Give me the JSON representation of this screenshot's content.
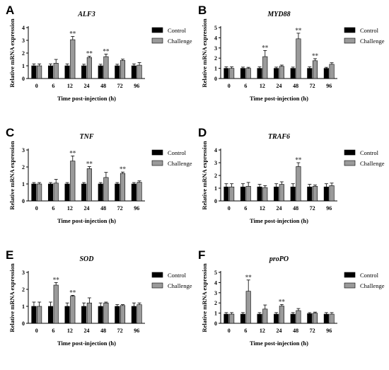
{
  "legend": {
    "control": "Control",
    "challenge": "Challenge"
  },
  "colors": {
    "control": "#000000",
    "challenge": "#9a9a9a",
    "significance": "#555555"
  },
  "chart_data": [
    {
      "panel": "A",
      "type": "bar",
      "title": "ALF3",
      "ylabel": "Relative mRNA expression",
      "xlabel": "Time post-injection (h)",
      "categories": [
        "0",
        "6",
        "12",
        "24",
        "48",
        "72",
        "96"
      ],
      "ylim": [
        0,
        4
      ],
      "yticks": [
        0,
        1,
        2,
        3,
        4
      ],
      "series": [
        {
          "name": "Control",
          "values": [
            1.0,
            1.0,
            1.0,
            1.0,
            1.0,
            1.0,
            1.0
          ],
          "errors": [
            0.15,
            0.15,
            0.15,
            0.12,
            0.12,
            0.12,
            0.15
          ]
        },
        {
          "name": "Challenge",
          "values": [
            1.0,
            1.2,
            3.05,
            1.65,
            1.72,
            1.42,
            1.05
          ],
          "errors": [
            0.15,
            0.3,
            0.25,
            0.1,
            0.2,
            0.1,
            0.2
          ]
        }
      ],
      "significance": [
        "",
        "",
        "**",
        "**",
        "**",
        "",
        ""
      ]
    },
    {
      "panel": "B",
      "type": "bar",
      "title": "MYD88",
      "ylabel": "Relative mRNA expression",
      "xlabel": "Time post-injection (h)",
      "categories": [
        "0",
        "6",
        "12",
        "24",
        "48",
        "72",
        "96"
      ],
      "ylim": [
        0,
        5
      ],
      "yticks": [
        0,
        1,
        2,
        3,
        4,
        5
      ],
      "series": [
        {
          "name": "Control",
          "values": [
            1.0,
            1.0,
            1.0,
            1.0,
            1.0,
            1.0,
            1.0
          ],
          "errors": [
            0.15,
            0.12,
            0.15,
            0.12,
            0.12,
            0.15,
            0.1
          ]
        },
        {
          "name": "Challenge",
          "values": [
            1.0,
            1.0,
            2.15,
            1.2,
            3.9,
            1.75,
            1.4
          ],
          "errors": [
            0.15,
            0.1,
            0.6,
            0.12,
            0.55,
            0.2,
            0.15
          ]
        }
      ],
      "significance": [
        "",
        "",
        "**",
        "",
        "**",
        "**",
        ""
      ]
    },
    {
      "panel": "C",
      "type": "bar",
      "title": "TNF",
      "ylabel": "Relative mRNA expression",
      "xlabel": "Time post-injection (h)",
      "categories": [
        "0",
        "6",
        "12",
        "24",
        "48",
        "72",
        "96"
      ],
      "ylim": [
        0,
        3
      ],
      "yticks": [
        0,
        1,
        2,
        3
      ],
      "series": [
        {
          "name": "Control",
          "values": [
            1.0,
            1.0,
            1.0,
            1.0,
            1.0,
            1.0,
            1.0
          ],
          "errors": [
            0.08,
            0.08,
            0.08,
            0.08,
            0.08,
            0.08,
            0.08
          ]
        },
        {
          "name": "Challenge",
          "values": [
            1.0,
            1.05,
            2.35,
            1.9,
            1.38,
            1.62,
            1.1
          ],
          "errors": [
            0.08,
            0.22,
            0.3,
            0.12,
            0.3,
            0.08,
            0.08
          ]
        }
      ],
      "significance": [
        "",
        "",
        "**",
        "**",
        "",
        "**",
        ""
      ]
    },
    {
      "panel": "D",
      "type": "bar",
      "title": "TRAF6",
      "ylabel": "Relative mRNA expression",
      "xlabel": "Time post-injection (h)",
      "categories": [
        "0",
        "6",
        "12",
        "24",
        "48",
        "72",
        "96"
      ],
      "ylim": [
        0,
        4
      ],
      "yticks": [
        0,
        1,
        2,
        3,
        4
      ],
      "series": [
        {
          "name": "Control",
          "values": [
            1.1,
            1.1,
            1.1,
            1.1,
            1.1,
            1.1,
            1.1
          ],
          "errors": [
            0.25,
            0.25,
            0.2,
            0.25,
            0.25,
            0.2,
            0.25
          ]
        },
        {
          "name": "Challenge",
          "values": [
            1.1,
            1.15,
            1.05,
            1.3,
            2.7,
            1.15,
            1.2
          ],
          "errors": [
            0.25,
            0.3,
            0.15,
            0.2,
            0.3,
            0.1,
            0.2
          ]
        }
      ],
      "significance": [
        "",
        "",
        "",
        "",
        "**",
        "",
        ""
      ]
    },
    {
      "panel": "E",
      "type": "bar",
      "title": "SOD",
      "ylabel": "Relative mRNA expression",
      "xlabel": "Time post-injection (h)",
      "categories": [
        "0",
        "6",
        "12",
        "24",
        "48",
        "72",
        "96"
      ],
      "ylim": [
        0,
        3
      ],
      "yticks": [
        0,
        1,
        2,
        3
      ],
      "series": [
        {
          "name": "Control",
          "values": [
            1.0,
            1.0,
            1.0,
            1.0,
            1.0,
            1.0,
            1.0
          ],
          "errors": [
            0.25,
            0.25,
            0.2,
            0.2,
            0.2,
            0.1,
            0.2
          ]
        },
        {
          "name": "Challenge",
          "values": [
            1.0,
            2.25,
            1.6,
            1.2,
            1.2,
            1.05,
            1.1
          ],
          "errors": [
            0.25,
            0.15,
            0.05,
            0.3,
            0.05,
            0.05,
            0.1
          ]
        }
      ],
      "significance": [
        "",
        "**",
        "**",
        "",
        "",
        "",
        ""
      ]
    },
    {
      "panel": "F",
      "type": "bar",
      "title": "proPO",
      "ylabel": "Relative mRNA expression",
      "xlabel": "Time post-injection (h)",
      "categories": [
        "0",
        "6",
        "12",
        "24",
        "48",
        "72",
        "96"
      ],
      "ylim": [
        0,
        5
      ],
      "yticks": [
        0,
        1,
        2,
        3,
        4,
        5
      ],
      "series": [
        {
          "name": "Control",
          "values": [
            0.9,
            0.9,
            0.9,
            0.9,
            0.9,
            0.95,
            0.9
          ],
          "errors": [
            0.15,
            0.15,
            0.15,
            0.15,
            0.15,
            0.1,
            0.15
          ]
        },
        {
          "name": "Challenge",
          "values": [
            0.9,
            3.15,
            1.4,
            1.7,
            1.25,
            1.0,
            0.9
          ],
          "errors": [
            0.15,
            1.1,
            0.4,
            0.15,
            0.2,
            0.1,
            0.15
          ]
        }
      ],
      "significance": [
        "",
        "**",
        "",
        "**",
        "",
        "",
        ""
      ]
    }
  ]
}
